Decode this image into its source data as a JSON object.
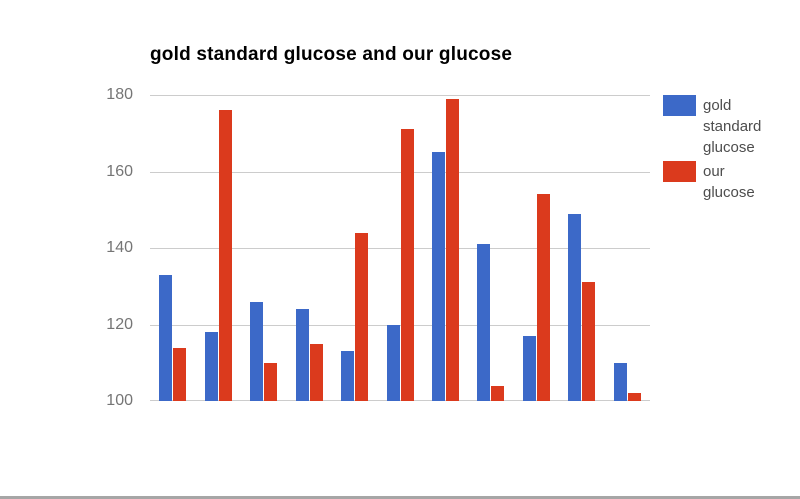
{
  "page": {
    "background": "#ffffff",
    "bottom_divider_color": "#a6a6a6"
  },
  "chart_data": {
    "type": "bar",
    "title": "gold standard glucose and our glucose",
    "series": [
      {
        "name": "gold standard glucose",
        "color": "#3c69c8",
        "values": [
          133,
          118,
          126,
          124,
          113,
          120,
          165,
          141,
          117,
          149,
          110
        ]
      },
      {
        "name": "our glucose",
        "color": "#db3a1d",
        "values": [
          114,
          176,
          110,
          115,
          144,
          171,
          179,
          104,
          154,
          131,
          102
        ]
      }
    ],
    "ylim": [
      100,
      180
    ],
    "yticks": [
      100,
      120,
      140,
      160,
      180
    ],
    "xlabel": "",
    "ylabel": "",
    "grid": true,
    "legend_position": "right",
    "colors": {
      "grid": "#cccccc",
      "axis_label": "#757575",
      "title": "#000000",
      "legend_text": "#4d4d4d"
    }
  }
}
